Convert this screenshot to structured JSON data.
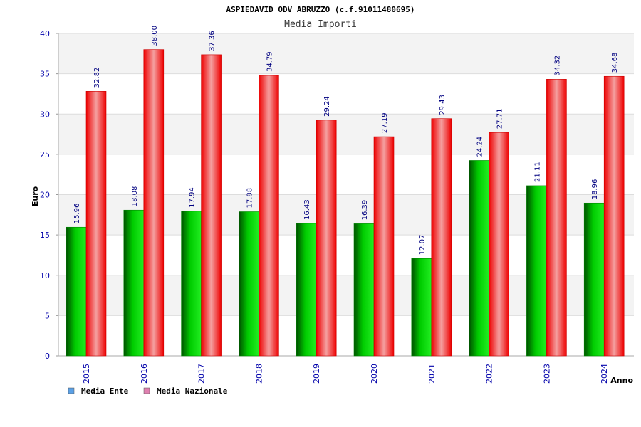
{
  "chart_data": {
    "type": "bar",
    "title": "ASPIEDAVID ODV ABRUZZO (c.f.91011480695)",
    "subtitle": "Media Importi",
    "ylabel": "Euro",
    "xlabel": "Anno",
    "ylim": [
      0,
      40
    ],
    "yticks": [
      "0",
      "5",
      "10",
      "15",
      "20",
      "25",
      "30",
      "35",
      "40"
    ],
    "categories": [
      "2015",
      "2016",
      "2017",
      "2018",
      "2019",
      "2020",
      "2021",
      "2022",
      "2023",
      "2024"
    ],
    "series": [
      {
        "name": "Media Ente",
        "values": [
          15.96,
          18.08,
          17.94,
          17.88,
          16.43,
          16.39,
          12.07,
          24.24,
          21.11,
          18.96
        ],
        "labels": [
          "15.96",
          "18.08",
          "17.94",
          "17.88",
          "16.43",
          "16.39",
          "12.07",
          "24.24",
          "21.11",
          "18.96"
        ],
        "color": "#00c000",
        "legend_color": "#5aa0e6"
      },
      {
        "name": "Media Nazionale",
        "values": [
          32.82,
          38.0,
          37.36,
          34.79,
          29.24,
          27.19,
          29.43,
          27.71,
          34.32,
          34.68
        ],
        "labels": [
          "32.82",
          "38.00",
          "37.36",
          "34.79",
          "29.24",
          "27.19",
          "29.43",
          "27.71",
          "34.32",
          "34.68"
        ],
        "color": "#ff0000",
        "legend_color": "#e080b0"
      }
    ],
    "grid": true,
    "legend_position": "bottom-left",
    "colors": {
      "band": "#f3f3f3",
      "grid": "#dddddd",
      "axis_text": "#0000aa",
      "value_text": "#000080"
    }
  }
}
